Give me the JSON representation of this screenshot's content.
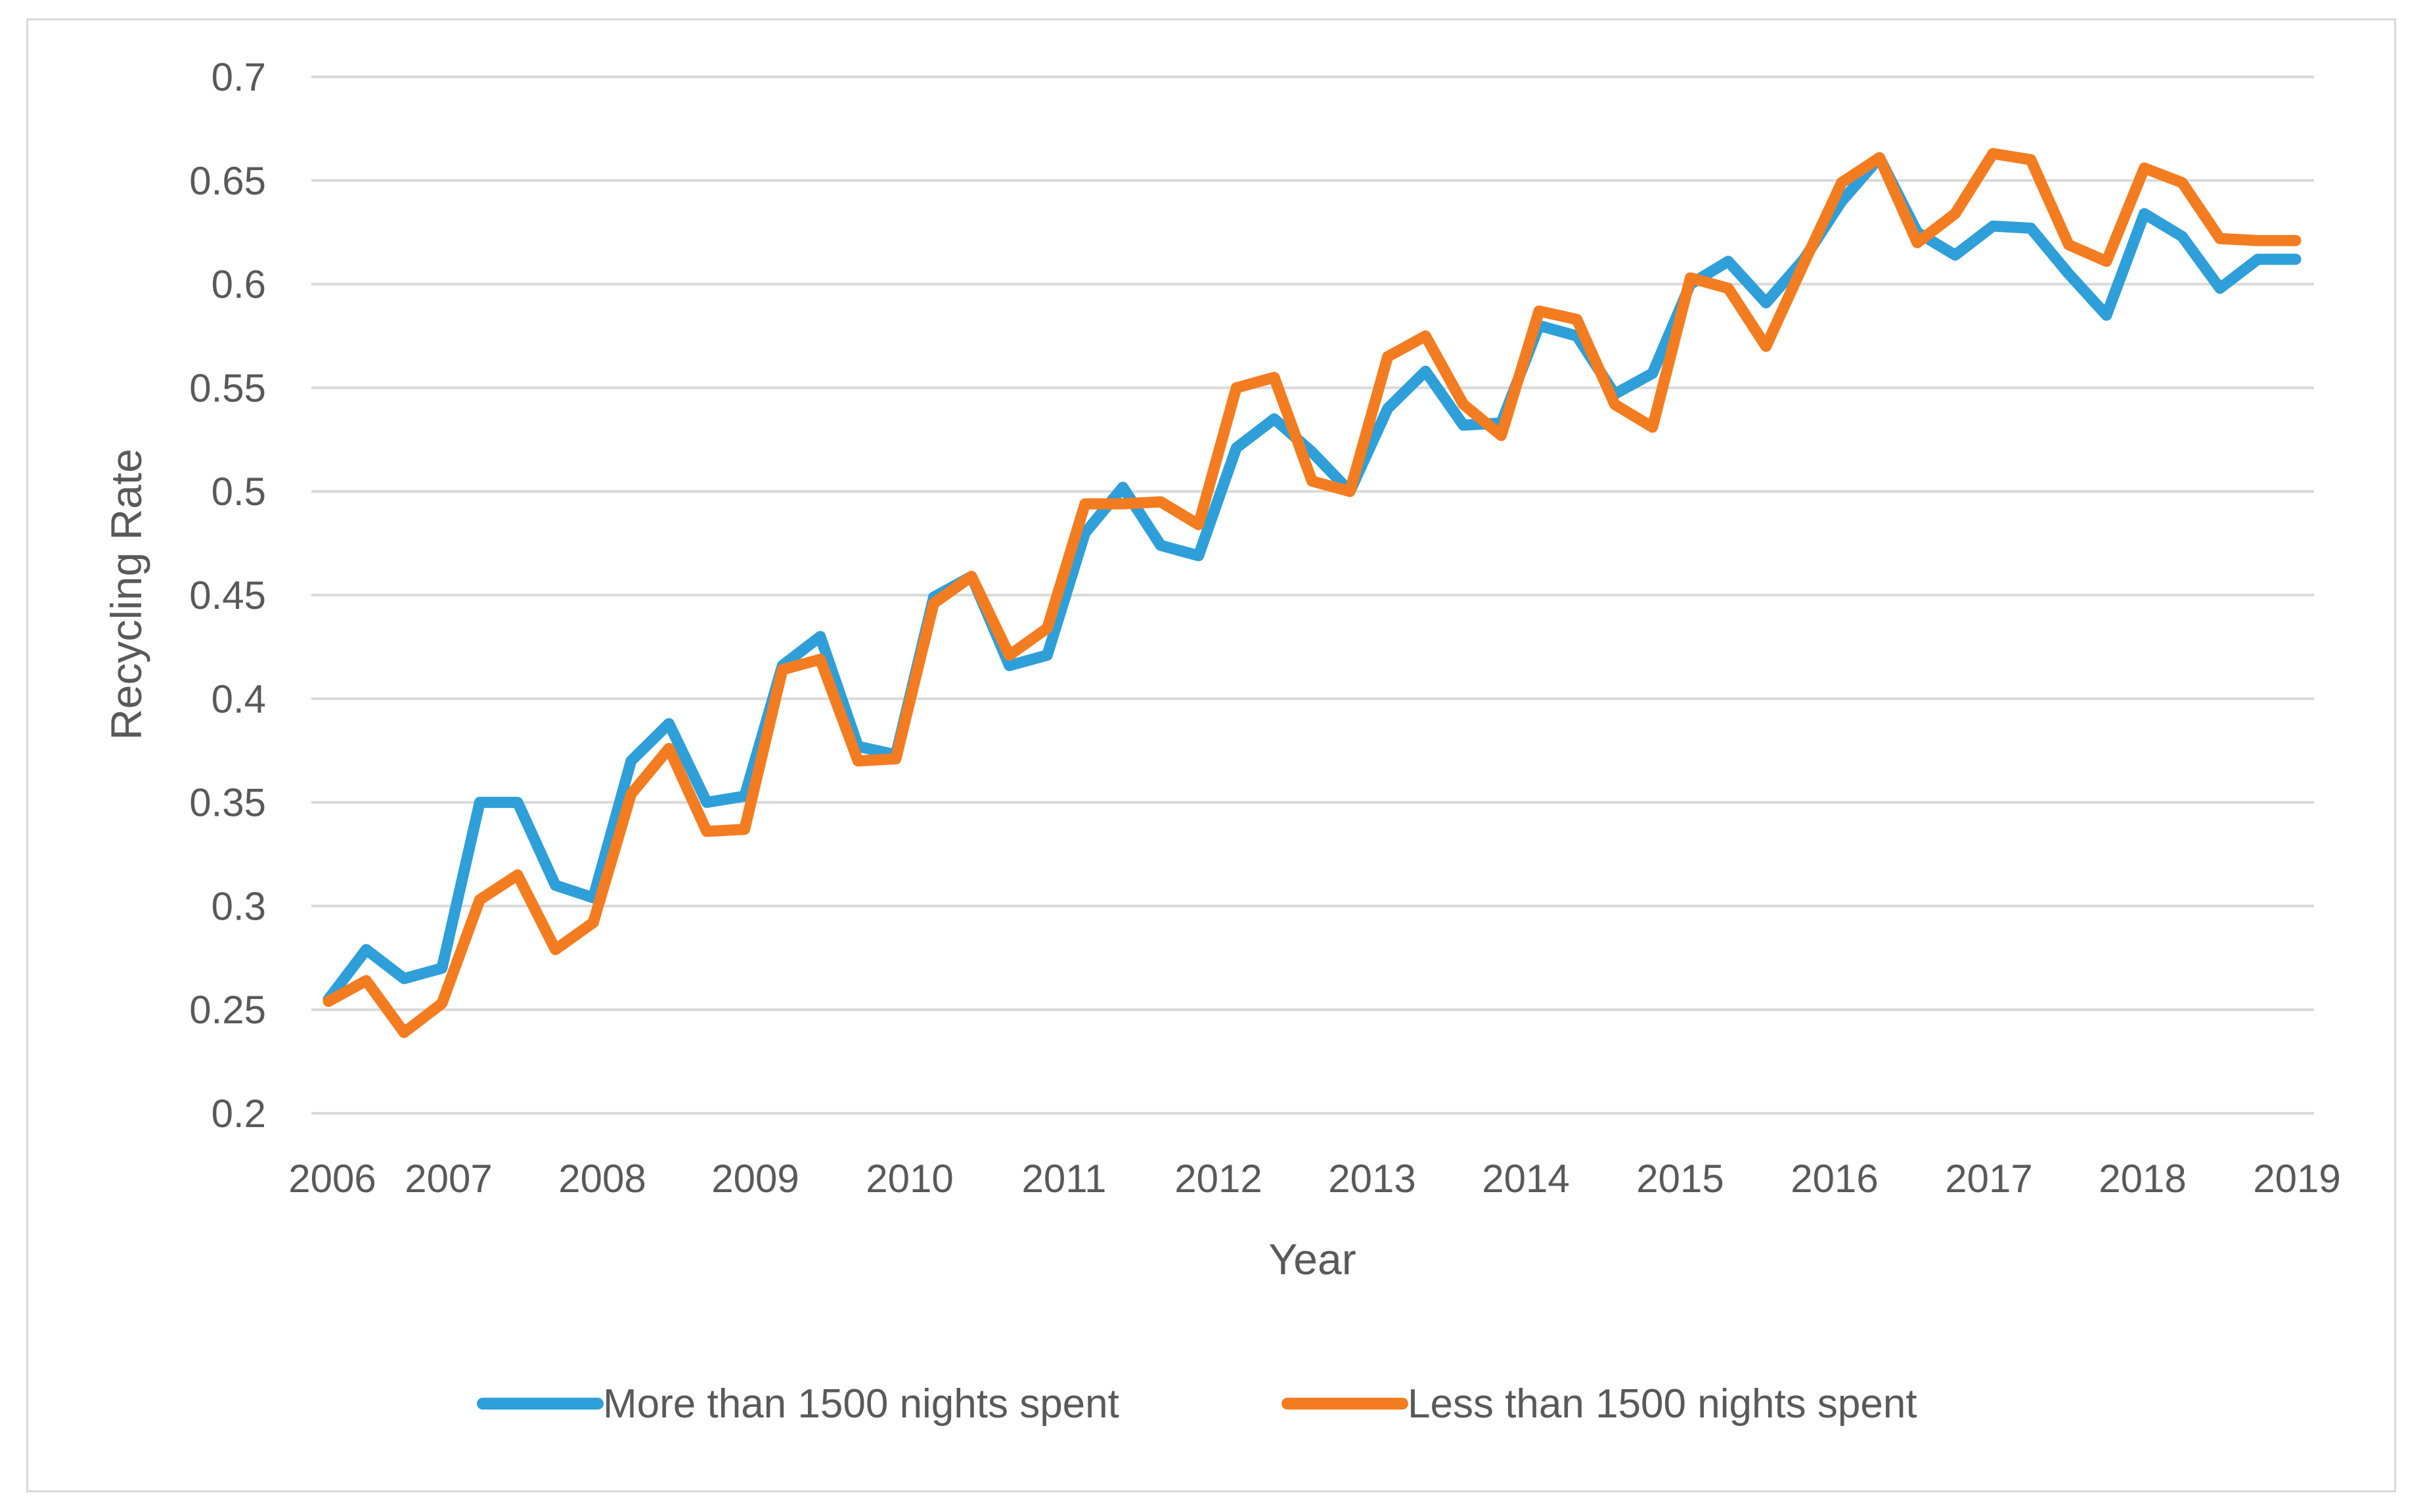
{
  "chart_data": {
    "type": "line",
    "title": "",
    "xlabel": "Year",
    "ylabel": "Recycling Rate",
    "ylim": [
      0.2,
      0.7
    ],
    "yticks": [
      0.2,
      0.25,
      0.3,
      0.35,
      0.4,
      0.45,
      0.5,
      0.55,
      0.6,
      0.65,
      0.7
    ],
    "ytick_labels": [
      "0.2",
      "0.25",
      "0.3",
      "0.35",
      "0.4",
      "0.45",
      "0.5",
      "0.55",
      "0.6",
      "0.65",
      "0.7"
    ],
    "xlim": [
      2006,
      2019
    ],
    "xtick_labels": [
      "2006",
      "2007",
      "2008",
      "2009",
      "2010",
      "2011",
      "2012",
      "2013",
      "2014",
      "2015",
      "2016",
      "2017",
      "2018",
      "2019"
    ],
    "grid": true,
    "legend_position": "bottom",
    "x": [
      2006.0,
      2006.25,
      2006.5,
      2006.75,
      2007.0,
      2007.25,
      2007.5,
      2007.75,
      2008.0,
      2008.25,
      2008.5,
      2008.75,
      2009.0,
      2009.25,
      2009.5,
      2009.75,
      2010.0,
      2010.25,
      2010.5,
      2010.75,
      2011.0,
      2011.25,
      2011.5,
      2011.75,
      2012.0,
      2012.25,
      2012.5,
      2012.75,
      2013.0,
      2013.25,
      2013.5,
      2013.75,
      2014.0,
      2014.25,
      2014.5,
      2014.75,
      2015.0,
      2015.25,
      2015.5,
      2015.75,
      2016.0,
      2016.25,
      2016.5,
      2016.75,
      2017.0,
      2017.25,
      2017.5,
      2017.75,
      2018.0,
      2018.25,
      2018.5,
      2018.75,
      2019.0
    ],
    "series": [
      {
        "name": "More than 1500 nights spent",
        "color": "#2e9fd8",
        "values": [
          0.255,
          0.279,
          0.265,
          0.27,
          0.35,
          0.35,
          0.31,
          0.304,
          0.37,
          0.388,
          0.35,
          0.353,
          0.416,
          0.43,
          0.377,
          0.373,
          0.449,
          0.459,
          0.416,
          0.421,
          0.48,
          0.502,
          0.474,
          0.469,
          0.521,
          0.535,
          0.519,
          0.5,
          0.54,
          0.558,
          0.532,
          0.533,
          0.58,
          0.575,
          0.547,
          0.557,
          0.6,
          0.611,
          0.591,
          0.612,
          0.64,
          0.661,
          0.625,
          0.614,
          0.628,
          0.627,
          0.605,
          0.585,
          0.634,
          0.623,
          0.598,
          0.612,
          0.612
        ]
      },
      {
        "name": "Less than 1500 nights spent",
        "color": "#f47c20",
        "values": [
          0.254,
          0.264,
          0.239,
          0.253,
          0.303,
          0.315,
          0.279,
          0.292,
          0.354,
          0.376,
          0.336,
          0.337,
          0.414,
          0.419,
          0.37,
          0.371,
          0.446,
          0.459,
          0.421,
          0.434,
          0.494,
          0.494,
          0.495,
          0.484,
          0.55,
          0.555,
          0.505,
          0.5,
          0.565,
          0.575,
          0.542,
          0.527,
          0.587,
          0.583,
          0.542,
          0.531,
          0.603,
          0.598,
          0.57,
          0.61,
          0.649,
          0.661,
          0.62,
          0.634,
          0.663,
          0.66,
          0.619,
          0.611,
          0.656,
          0.649,
          0.622,
          0.621,
          0.621
        ]
      }
    ]
  }
}
